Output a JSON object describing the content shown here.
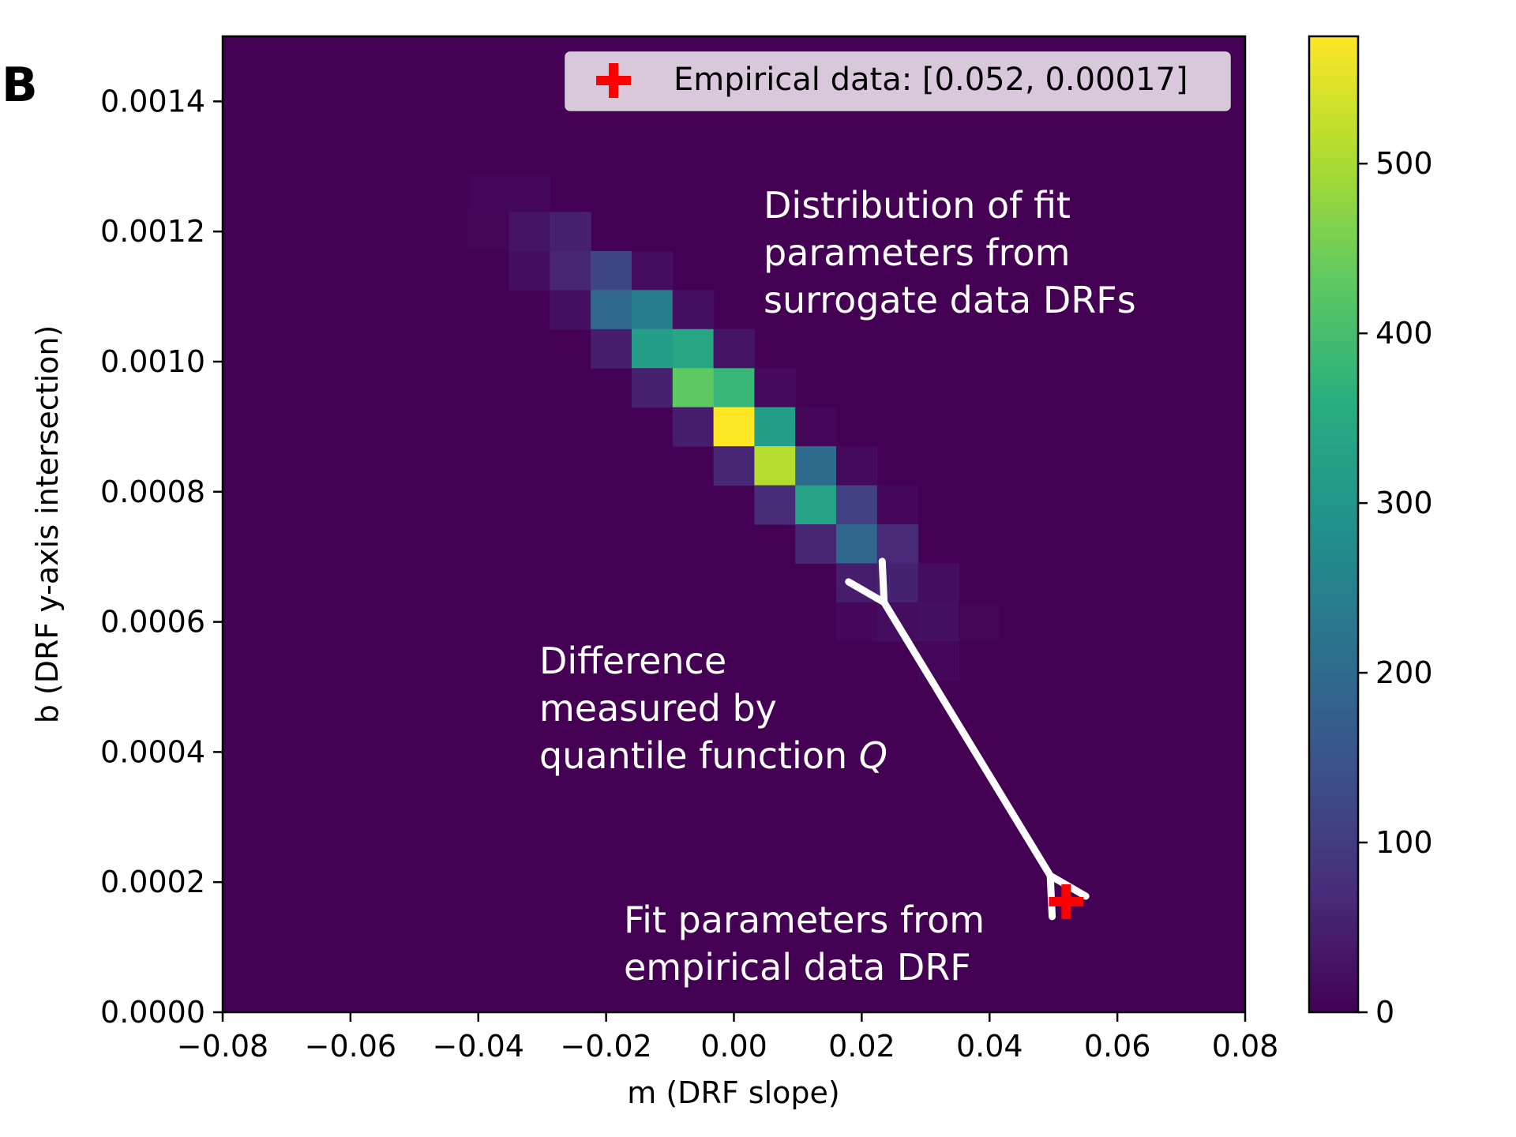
{
  "panel_label": "B",
  "chart_data": {
    "type": "heatmap",
    "title": "",
    "xlabel": "m (DRF slope)",
    "ylabel": "b (DRF y-axis intersection)",
    "xlim": [
      -0.08,
      0.08
    ],
    "ylim": [
      0.0,
      0.0015
    ],
    "x_ticks": [
      -0.08,
      -0.06,
      -0.04,
      -0.02,
      0.0,
      0.02,
      0.04,
      0.06,
      0.08
    ],
    "x_tick_labels": [
      "−0.08",
      "−0.06",
      "−0.04",
      "−0.02",
      "0.00",
      "0.02",
      "0.04",
      "0.06",
      "0.08"
    ],
    "y_ticks": [
      0.0,
      0.0002,
      0.0004,
      0.0006,
      0.0008,
      0.001,
      0.0012,
      0.0014
    ],
    "y_tick_labels": [
      "0.0000",
      "0.0002",
      "0.0004",
      "0.0006",
      "0.0008",
      "0.0010",
      "0.0012",
      "0.0014"
    ],
    "bin_width_x": 0.0064,
    "bin_height_y": 6e-05,
    "colormap": "viridis",
    "colorbar": {
      "min": 0,
      "max": 575,
      "ticks": [
        0,
        100,
        200,
        300,
        400,
        500
      ],
      "tick_labels": [
        "0",
        "100",
        "200",
        "300",
        "400",
        "500"
      ]
    },
    "bins": [
      {
        "x": -0.0384,
        "y": 0.00126,
        "count": 8
      },
      {
        "x": -0.032,
        "y": 0.00126,
        "count": 10
      },
      {
        "x": -0.0384,
        "y": 0.0012,
        "count": 6
      },
      {
        "x": -0.032,
        "y": 0.0012,
        "count": 30
      },
      {
        "x": -0.0256,
        "y": 0.0012,
        "count": 50
      },
      {
        "x": -0.032,
        "y": 0.00114,
        "count": 20
      },
      {
        "x": -0.0256,
        "y": 0.00114,
        "count": 60
      },
      {
        "x": -0.0192,
        "y": 0.00114,
        "count": 120
      },
      {
        "x": -0.0128,
        "y": 0.00114,
        "count": 20
      },
      {
        "x": -0.0256,
        "y": 0.00108,
        "count": 25
      },
      {
        "x": -0.0192,
        "y": 0.00108,
        "count": 195
      },
      {
        "x": -0.0128,
        "y": 0.00108,
        "count": 240
      },
      {
        "x": -0.0064,
        "y": 0.00108,
        "count": 25
      },
      {
        "x": -0.0192,
        "y": 0.00102,
        "count": 45
      },
      {
        "x": -0.0128,
        "y": 0.00102,
        "count": 320
      },
      {
        "x": -0.0064,
        "y": 0.00102,
        "count": 340
      },
      {
        "x": 0.0,
        "y": 0.00102,
        "count": 30
      },
      {
        "x": -0.0128,
        "y": 0.00096,
        "count": 50
      },
      {
        "x": -0.0064,
        "y": 0.00096,
        "count": 430
      },
      {
        "x": 0.0,
        "y": 0.00096,
        "count": 380
      },
      {
        "x": 0.0064,
        "y": 0.00096,
        "count": 15
      },
      {
        "x": -0.0064,
        "y": 0.0009,
        "count": 45
      },
      {
        "x": 0.0,
        "y": 0.0009,
        "count": 575
      },
      {
        "x": 0.0064,
        "y": 0.0009,
        "count": 320
      },
      {
        "x": 0.0128,
        "y": 0.0009,
        "count": 10
      },
      {
        "x": 0.0,
        "y": 0.00084,
        "count": 60
      },
      {
        "x": 0.0064,
        "y": 0.00084,
        "count": 510
      },
      {
        "x": 0.0128,
        "y": 0.00084,
        "count": 200
      },
      {
        "x": 0.0192,
        "y": 0.00084,
        "count": 15
      },
      {
        "x": 0.0064,
        "y": 0.00078,
        "count": 70
      },
      {
        "x": 0.0128,
        "y": 0.00078,
        "count": 330
      },
      {
        "x": 0.0192,
        "y": 0.00078,
        "count": 110
      },
      {
        "x": 0.0256,
        "y": 0.00078,
        "count": 10
      },
      {
        "x": 0.0128,
        "y": 0.00072,
        "count": 60
      },
      {
        "x": 0.0192,
        "y": 0.00072,
        "count": 190
      },
      {
        "x": 0.0256,
        "y": 0.00072,
        "count": 65
      },
      {
        "x": 0.0192,
        "y": 0.00066,
        "count": 45
      },
      {
        "x": 0.0256,
        "y": 0.00066,
        "count": 55
      },
      {
        "x": 0.032,
        "y": 0.00066,
        "count": 20
      },
      {
        "x": 0.0192,
        "y": 0.0006,
        "count": 10
      },
      {
        "x": 0.0256,
        "y": 0.0006,
        "count": 20
      },
      {
        "x": 0.032,
        "y": 0.0006,
        "count": 25
      },
      {
        "x": 0.0384,
        "y": 0.0006,
        "count": 6
      },
      {
        "x": 0.032,
        "y": 0.00054,
        "count": 8
      }
    ],
    "empirical_point": {
      "x": 0.052,
      "y": 0.00017,
      "color": "#ff0000"
    },
    "legend": {
      "label": "Empirical data: [0.052, 0.00017]",
      "position": "top-right"
    },
    "annotations": [
      {
        "id": "distribution",
        "lines": [
          "Distribution of fit",
          "parameters from",
          "surrogate data DRFs"
        ]
      },
      {
        "id": "difference",
        "lines": [
          "Difference",
          "measured by"
        ],
        "last_line_prefix": "quantile function ",
        "last_line_italic": "Q"
      },
      {
        "id": "fit",
        "lines": [
          "Fit parameters from",
          "empirical data DRF"
        ]
      }
    ],
    "arrow": {
      "from": [
        0.0235,
        0.00063
      ],
      "to": [
        0.0495,
        0.00021
      ],
      "color": "#ffffff"
    }
  }
}
